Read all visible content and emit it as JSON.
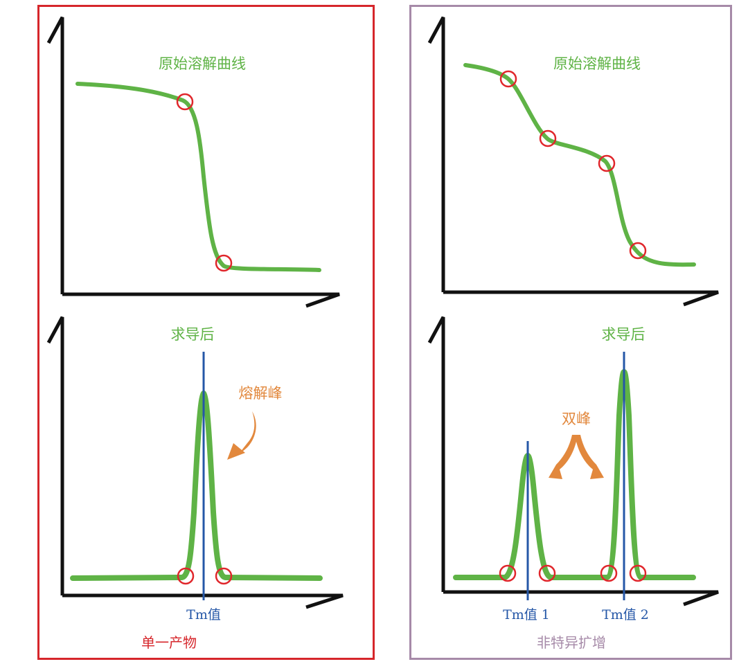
{
  "left_panel": {
    "top_title": "原始溶解曲线",
    "bottom_title": "求导后",
    "annotation": "熔解峰",
    "tm_label": "Tm值",
    "caption": "单一产物"
  },
  "right_panel": {
    "top_title": "原始溶解曲线",
    "bottom_title": "求导后",
    "annotation": "双峰",
    "tm_label_1": "Tm值 1",
    "tm_label_2": "Tm值 2",
    "caption": "非特异扩增"
  },
  "colors": {
    "single_frame": "#d6262b",
    "nonspecific_frame": "#a68aa8",
    "curve": "#5fb346",
    "marker": "#e0262b",
    "tm_line": "#2557a7",
    "annotation": "#e2883d"
  }
}
